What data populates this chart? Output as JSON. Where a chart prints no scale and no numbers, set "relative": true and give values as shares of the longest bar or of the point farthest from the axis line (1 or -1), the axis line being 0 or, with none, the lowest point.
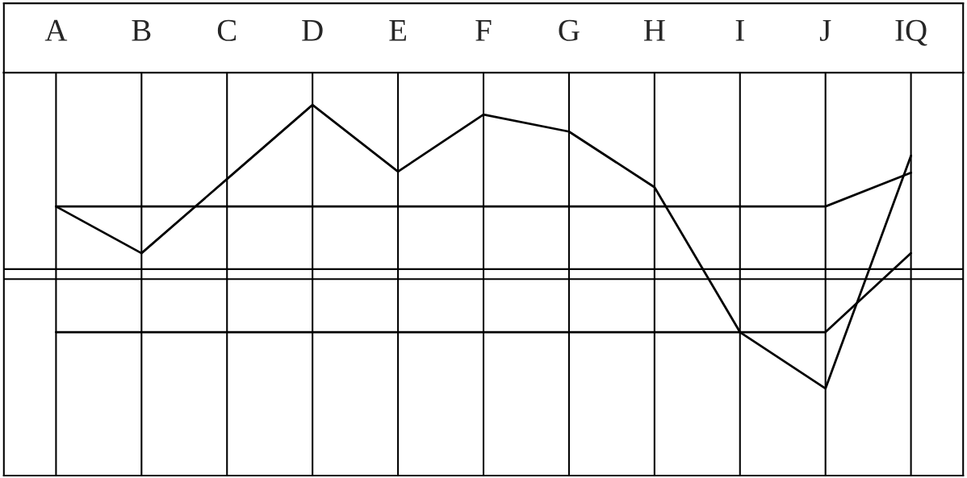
{
  "chart_data": {
    "type": "line",
    "relative": true,
    "grid": "x",
    "marker": "none",
    "line_style": "solid",
    "categories": [
      "A",
      "B",
      "C",
      "D",
      "E",
      "F",
      "G",
      "H",
      "I",
      "J",
      "IQ"
    ],
    "series": [
      {
        "color": "#000000",
        "values": [
          0.726,
          0.6,
          0.8,
          1,
          0.82,
          0.974,
          0.928,
          0.778,
          0.387,
          0.235,
          0.863
        ]
      },
      {
        "color": "#000000",
        "values": [
          0.726,
          0.726,
          0.726,
          0.726,
          0.726,
          0.726,
          0.726,
          0.726,
          0.726,
          0.726,
          0.817
        ]
      },
      {
        "color": "#000000",
        "values": [
          0.387,
          0.387,
          0.387,
          0.387,
          0.387,
          0.387,
          0.387,
          0.387,
          0.387,
          0.387,
          0.6
        ]
      }
    ],
    "ref_lines": [
      {
        "axis": "y",
        "value": 0.557,
        "color": "#000000",
        "line_style": "solid"
      },
      {
        "axis": "y",
        "value": 0.53,
        "color": "#000000",
        "line_style": "solid"
      }
    ]
  }
}
